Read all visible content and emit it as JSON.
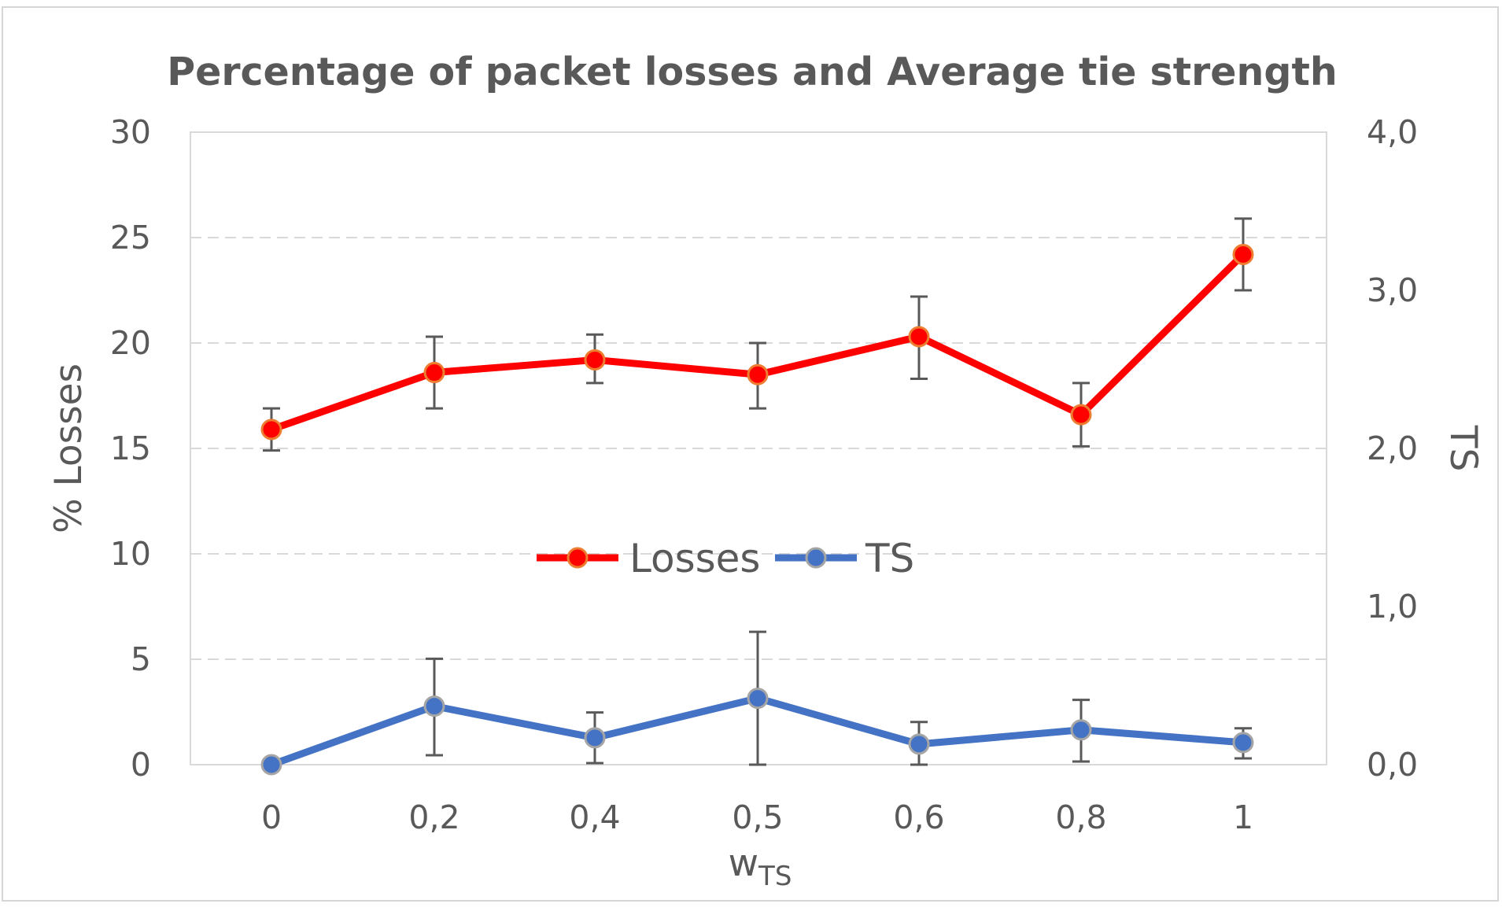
{
  "chart_data": {
    "type": "line",
    "title": "Percentage of packet losses and Average tie strength",
    "xlabel": "w",
    "xlabel_subscript": "TS",
    "ylabel_left": "% Losses",
    "ylabel_right": "TS",
    "categories": [
      "0",
      "0,2",
      "0,4",
      "0,5",
      "0,6",
      "0,8",
      "1"
    ],
    "y_left": {
      "min": 0,
      "max": 30,
      "ticks": [
        "0",
        "5",
        "10",
        "15",
        "20",
        "25",
        "30"
      ]
    },
    "y_right": {
      "min": 0,
      "max": 4,
      "ticks": [
        "0,0",
        "1,0",
        "2,0",
        "3,0",
        "4,0"
      ]
    },
    "grid": "horizontal dashed",
    "legend": "center",
    "series": [
      {
        "name": "Losses",
        "axis": "left",
        "color": "#ff0000",
        "marker_edge": "#ed7d31",
        "values": [
          15.9,
          18.6,
          19.2,
          18.5,
          20.3,
          16.6,
          24.2
        ],
        "err_low": [
          14.9,
          16.9,
          18.1,
          16.9,
          18.3,
          15.1,
          22.5
        ],
        "err_high": [
          16.9,
          20.3,
          20.4,
          20.0,
          22.2,
          18.1,
          25.9
        ]
      },
      {
        "name": "TS",
        "axis": "right",
        "color": "#4472c4",
        "marker_edge": "#a5a5a5",
        "values": [
          0.0,
          0.37,
          0.17,
          0.42,
          0.13,
          0.22,
          0.14
        ],
        "err_low": [
          0.0,
          0.06,
          0.01,
          0.0,
          0.0,
          0.02,
          0.04
        ],
        "err_high": [
          0.0,
          0.67,
          0.33,
          0.84,
          0.27,
          0.41,
          0.23
        ]
      }
    ]
  }
}
